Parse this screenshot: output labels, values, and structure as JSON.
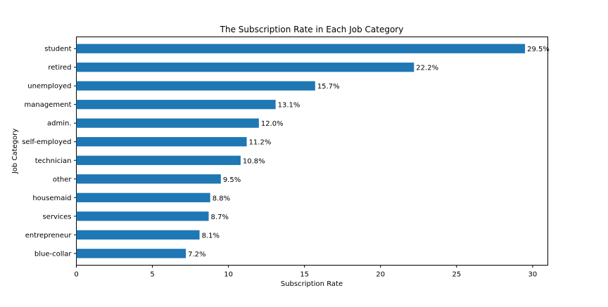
{
  "chart_data": {
    "type": "bar",
    "orientation": "horizontal",
    "title": "The Subscription Rate in Each Job Category",
    "xlabel": "Subscription Rate",
    "ylabel": "Job Category",
    "xlim": [
      0,
      31
    ],
    "xticks": [
      0,
      5,
      10,
      15,
      20,
      25,
      30
    ],
    "grid": false,
    "bar_color": "#1f77b4",
    "categories": [
      "student",
      "retired",
      "unemployed",
      "management",
      "admin.",
      "self-employed",
      "technician",
      "other",
      "housemaid",
      "services",
      "entrepreneur",
      "blue-collar"
    ],
    "values": [
      29.5,
      22.2,
      15.7,
      13.1,
      12.0,
      11.2,
      10.8,
      9.5,
      8.8,
      8.7,
      8.1,
      7.2
    ],
    "value_labels": [
      "29.5%",
      "22.2%",
      "15.7%",
      "13.1%",
      "12.0%",
      "11.2%",
      "10.8%",
      "9.5%",
      "8.8%",
      "8.7%",
      "8.1%",
      "7.2%"
    ]
  }
}
